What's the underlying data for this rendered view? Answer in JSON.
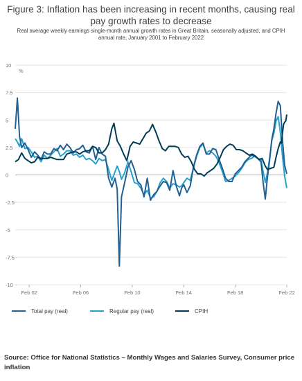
{
  "title": "Figure 3: Inflation has been increasing in recent months, causing real pay growth rates to decrease",
  "subtitle": "Real average weekly earnings single-month annual growth rates in Great Britain, seasonally adjusted, and CPIH annual rate, January 2001 to February 2022",
  "source": "Source: Office for National Statistics – Monthly Wages and Salaries Survey, Consumer price inflation",
  "colors": {
    "total": "#206095",
    "regular": "#27a0cc",
    "cpih": "#003c57",
    "grid": "#e6e6e6",
    "zero": "#b3b3b3"
  },
  "chart_data": {
    "type": "line",
    "title": "Figure 3: Inflation has been increasing in recent months, causing real pay growth rates to decrease",
    "ylabel": "%",
    "ylim": [
      -10,
      10
    ],
    "yticks": [
      10,
      7.5,
      5,
      2.5,
      0,
      -2.5,
      -5,
      -7.5,
      -10
    ],
    "ytick_labels": [
      "10",
      "7.5",
      "5",
      "2.5",
      "0",
      "-2.5",
      "-5",
      "-7.5",
      "-10"
    ],
    "xlim": [
      "2001-01",
      "2022-02"
    ],
    "xticks": [
      "2002-02",
      "2006-02",
      "2010-02",
      "2014-02",
      "2018-02",
      "2022-02"
    ],
    "xtick_labels": [
      "Feb 02",
      "Feb 06",
      "Feb 10",
      "Feb 14",
      "Feb 18",
      "Feb 22"
    ],
    "grid": "horizontal",
    "legend": "bottom",
    "series": [
      {
        "name": "Total pay (real)",
        "color": "#206095",
        "points": [
          [
            "2001-01",
            4.2
          ],
          [
            "2001-03",
            7.0
          ],
          [
            "2001-05",
            3.5
          ],
          [
            "2001-07",
            2.5
          ],
          [
            "2001-10",
            2.9
          ],
          [
            "2002-01",
            2.3
          ],
          [
            "2002-04",
            1.6
          ],
          [
            "2002-07",
            2.1
          ],
          [
            "2002-10",
            1.8
          ],
          [
            "2003-01",
            1.4
          ],
          [
            "2003-04",
            2.1
          ],
          [
            "2003-07",
            1.9
          ],
          [
            "2003-10",
            1.9
          ],
          [
            "2004-01",
            2.4
          ],
          [
            "2004-04",
            2.2
          ],
          [
            "2004-07",
            2.7
          ],
          [
            "2004-10",
            2.3
          ],
          [
            "2005-01",
            2.8
          ],
          [
            "2005-04",
            2.5
          ],
          [
            "2005-07",
            2.0
          ],
          [
            "2005-10",
            2.3
          ],
          [
            "2006-01",
            2.4
          ],
          [
            "2006-04",
            2.7
          ],
          [
            "2006-07",
            2.1
          ],
          [
            "2006-10",
            2.0
          ],
          [
            "2007-01",
            2.6
          ],
          [
            "2007-04",
            1.4
          ],
          [
            "2007-07",
            2.5
          ],
          [
            "2007-10",
            1.9
          ],
          [
            "2008-01",
            1.7
          ],
          [
            "2008-04",
            -0.3
          ],
          [
            "2008-07",
            -1.1
          ],
          [
            "2008-10",
            -0.3
          ],
          [
            "2008-12",
            -1.3
          ],
          [
            "2009-02",
            -8.3
          ],
          [
            "2009-04",
            -2.0
          ],
          [
            "2009-07",
            -0.7
          ],
          [
            "2009-10",
            0.7
          ],
          [
            "2010-01",
            1.3
          ],
          [
            "2010-04",
            0.5
          ],
          [
            "2010-07",
            -0.6
          ],
          [
            "2010-10",
            -0.9
          ],
          [
            "2011-01",
            -2.0
          ],
          [
            "2011-04",
            -0.3
          ],
          [
            "2011-07",
            -2.3
          ],
          [
            "2011-10",
            -1.8
          ],
          [
            "2012-01",
            -1.5
          ],
          [
            "2012-04",
            -1.0
          ],
          [
            "2012-07",
            -0.6
          ],
          [
            "2012-10",
            -0.7
          ],
          [
            "2013-01",
            -1.4
          ],
          [
            "2013-04",
            0.4
          ],
          [
            "2013-07",
            -1.0
          ],
          [
            "2013-10",
            -1.9
          ],
          [
            "2013-12",
            -1.2
          ],
          [
            "2014-02",
            -0.9
          ],
          [
            "2014-05",
            -1.6
          ],
          [
            "2014-08",
            -1.0
          ],
          [
            "2014-11",
            0.7
          ],
          [
            "2015-02",
            1.8
          ],
          [
            "2015-05",
            2.6
          ],
          [
            "2015-08",
            2.9
          ],
          [
            "2015-11",
            1.9
          ],
          [
            "2016-02",
            1.9
          ],
          [
            "2016-05",
            2.4
          ],
          [
            "2016-08",
            2.3
          ],
          [
            "2016-11",
            1.4
          ],
          [
            "2017-02",
            0.6
          ],
          [
            "2017-05",
            -0.3
          ],
          [
            "2017-08",
            -0.6
          ],
          [
            "2017-11",
            -0.6
          ],
          [
            "2018-02",
            0.1
          ],
          [
            "2018-05",
            0.4
          ],
          [
            "2018-08",
            0.7
          ],
          [
            "2018-11",
            1.2
          ],
          [
            "2019-02",
            1.5
          ],
          [
            "2019-05",
            1.8
          ],
          [
            "2019-08",
            1.7
          ],
          [
            "2019-11",
            1.5
          ],
          [
            "2020-02",
            1.2
          ],
          [
            "2020-04",
            -0.7
          ],
          [
            "2020-06",
            -2.2
          ],
          [
            "2020-08",
            -0.2
          ],
          [
            "2020-10",
            1.3
          ],
          [
            "2020-12",
            3.2
          ],
          [
            "2021-02",
            4.2
          ],
          [
            "2021-04",
            5.6
          ],
          [
            "2021-06",
            6.7
          ],
          [
            "2021-08",
            6.3
          ],
          [
            "2021-10",
            3.2
          ],
          [
            "2021-12",
            0.9
          ],
          [
            "2022-02",
            0.1
          ]
        ]
      },
      {
        "name": "Regular pay (real)",
        "color": "#27a0cc",
        "points": [
          [
            "2001-01",
            3.3
          ],
          [
            "2001-03",
            3.0
          ],
          [
            "2001-05",
            2.6
          ],
          [
            "2001-07",
            3.3
          ],
          [
            "2001-10",
            2.4
          ],
          [
            "2002-01",
            2.5
          ],
          [
            "2002-04",
            2.1
          ],
          [
            "2002-07",
            1.6
          ],
          [
            "2002-10",
            1.7
          ],
          [
            "2003-01",
            1.2
          ],
          [
            "2003-04",
            1.8
          ],
          [
            "2003-07",
            1.5
          ],
          [
            "2003-10",
            1.8
          ],
          [
            "2004-01",
            2.1
          ],
          [
            "2004-04",
            2.4
          ],
          [
            "2004-07",
            1.7
          ],
          [
            "2004-10",
            1.9
          ],
          [
            "2005-01",
            2.2
          ],
          [
            "2005-04",
            2.2
          ],
          [
            "2005-07",
            1.8
          ],
          [
            "2005-10",
            1.9
          ],
          [
            "2006-01",
            1.6
          ],
          [
            "2006-04",
            1.8
          ],
          [
            "2006-07",
            1.4
          ],
          [
            "2006-10",
            1.5
          ],
          [
            "2007-01",
            1.3
          ],
          [
            "2007-04",
            1.0
          ],
          [
            "2007-07",
            1.5
          ],
          [
            "2007-10",
            1.3
          ],
          [
            "2008-01",
            1.4
          ],
          [
            "2008-04",
            0.5
          ],
          [
            "2008-07",
            -0.5
          ],
          [
            "2008-10",
            0.3
          ],
          [
            "2008-12",
            0.8
          ],
          [
            "2009-02",
            0.3
          ],
          [
            "2009-04",
            -0.4
          ],
          [
            "2009-07",
            0.2
          ],
          [
            "2009-10",
            1.2
          ],
          [
            "2010-01",
            0.3
          ],
          [
            "2010-04",
            -0.7
          ],
          [
            "2010-07",
            -0.8
          ],
          [
            "2010-10",
            -1.2
          ],
          [
            "2011-01",
            -1.8
          ],
          [
            "2011-04",
            -1.4
          ],
          [
            "2011-07",
            -2.1
          ],
          [
            "2011-10",
            -2.0
          ],
          [
            "2012-01",
            -1.5
          ],
          [
            "2012-04",
            -0.7
          ],
          [
            "2012-07",
            -0.3
          ],
          [
            "2012-10",
            -0.6
          ],
          [
            "2013-01",
            -1.2
          ],
          [
            "2013-04",
            -0.8
          ],
          [
            "2013-07",
            -0.9
          ],
          [
            "2013-10",
            -1.1
          ],
          [
            "2013-12",
            -1.0
          ],
          [
            "2014-02",
            -0.7
          ],
          [
            "2014-05",
            -0.3
          ],
          [
            "2014-08",
            -0.5
          ],
          [
            "2014-11",
            0.6
          ],
          [
            "2015-02",
            1.7
          ],
          [
            "2015-05",
            2.5
          ],
          [
            "2015-08",
            2.8
          ],
          [
            "2015-11",
            2.0
          ],
          [
            "2016-02",
            2.2
          ],
          [
            "2016-05",
            2.0
          ],
          [
            "2016-08",
            1.7
          ],
          [
            "2016-11",
            1.1
          ],
          [
            "2017-02",
            0.3
          ],
          [
            "2017-05",
            -0.6
          ],
          [
            "2017-08",
            -0.5
          ],
          [
            "2017-11",
            -0.3
          ],
          [
            "2018-02",
            -0.1
          ],
          [
            "2018-05",
            0.2
          ],
          [
            "2018-08",
            0.6
          ],
          [
            "2018-11",
            1.1
          ],
          [
            "2019-02",
            1.4
          ],
          [
            "2019-05",
            1.5
          ],
          [
            "2019-08",
            1.7
          ],
          [
            "2019-11",
            1.5
          ],
          [
            "2020-02",
            1.4
          ],
          [
            "2020-04",
            0.3
          ],
          [
            "2020-06",
            -0.7
          ],
          [
            "2020-08",
            0.2
          ],
          [
            "2020-10",
            1.5
          ],
          [
            "2020-12",
            3.1
          ],
          [
            "2021-02",
            3.8
          ],
          [
            "2021-04",
            4.9
          ],
          [
            "2021-06",
            5.3
          ],
          [
            "2021-08",
            3.9
          ],
          [
            "2021-10",
            1.7
          ],
          [
            "2021-12",
            -0.1
          ],
          [
            "2022-02",
            -1.2
          ]
        ]
      },
      {
        "name": "CPIH",
        "color": "#003c57",
        "points": [
          [
            "2001-01",
            1.2
          ],
          [
            "2001-04",
            1.4
          ],
          [
            "2001-07",
            2.0
          ],
          [
            "2001-10",
            1.5
          ],
          [
            "2002-01",
            1.3
          ],
          [
            "2002-04",
            1.1
          ],
          [
            "2002-07",
            1.2
          ],
          [
            "2002-10",
            1.6
          ],
          [
            "2003-01",
            1.5
          ],
          [
            "2003-04",
            1.5
          ],
          [
            "2003-07",
            1.5
          ],
          [
            "2003-10",
            1.6
          ],
          [
            "2004-01",
            1.5
          ],
          [
            "2004-04",
            1.4
          ],
          [
            "2004-07",
            1.4
          ],
          [
            "2004-10",
            1.4
          ],
          [
            "2005-01",
            1.9
          ],
          [
            "2005-04",
            2.0
          ],
          [
            "2005-07",
            2.1
          ],
          [
            "2005-10",
            2.1
          ],
          [
            "2006-01",
            1.9
          ],
          [
            "2006-04",
            2.1
          ],
          [
            "2006-07",
            2.2
          ],
          [
            "2006-10",
            2.2
          ],
          [
            "2007-01",
            2.6
          ],
          [
            "2007-04",
            2.5
          ],
          [
            "2007-07",
            2.0
          ],
          [
            "2007-10",
            2.0
          ],
          [
            "2008-01",
            2.3
          ],
          [
            "2008-04",
            2.8
          ],
          [
            "2008-07",
            4.2
          ],
          [
            "2008-09",
            4.7
          ],
          [
            "2008-12",
            3.1
          ],
          [
            "2009-03",
            2.6
          ],
          [
            "2009-06",
            1.9
          ],
          [
            "2009-09",
            1.3
          ],
          [
            "2009-12",
            2.6
          ],
          [
            "2010-03",
            3.0
          ],
          [
            "2010-06",
            2.9
          ],
          [
            "2010-09",
            2.8
          ],
          [
            "2010-12",
            3.3
          ],
          [
            "2011-03",
            3.8
          ],
          [
            "2011-06",
            4.0
          ],
          [
            "2011-09",
            4.6
          ],
          [
            "2011-12",
            3.9
          ],
          [
            "2012-03",
            3.1
          ],
          [
            "2012-06",
            2.4
          ],
          [
            "2012-09",
            2.2
          ],
          [
            "2012-12",
            2.6
          ],
          [
            "2013-03",
            2.6
          ],
          [
            "2013-06",
            2.6
          ],
          [
            "2013-09",
            2.5
          ],
          [
            "2013-12",
            1.9
          ],
          [
            "2014-03",
            1.6
          ],
          [
            "2014-06",
            1.7
          ],
          [
            "2014-09",
            1.2
          ],
          [
            "2014-12",
            0.5
          ],
          [
            "2015-03",
            0.1
          ],
          [
            "2015-06",
            0.1
          ],
          [
            "2015-09",
            -0.1
          ],
          [
            "2015-12",
            0.2
          ],
          [
            "2016-03",
            0.4
          ],
          [
            "2016-06",
            0.6
          ],
          [
            "2016-09",
            1.0
          ],
          [
            "2016-12",
            1.6
          ],
          [
            "2017-03",
            2.3
          ],
          [
            "2017-06",
            2.6
          ],
          [
            "2017-09",
            2.8
          ],
          [
            "2017-12",
            2.7
          ],
          [
            "2018-03",
            2.3
          ],
          [
            "2018-06",
            2.3
          ],
          [
            "2018-09",
            2.2
          ],
          [
            "2018-12",
            2.0
          ],
          [
            "2019-03",
            1.8
          ],
          [
            "2019-06",
            1.9
          ],
          [
            "2019-09",
            1.7
          ],
          [
            "2019-12",
            1.4
          ],
          [
            "2020-03",
            1.5
          ],
          [
            "2020-06",
            0.8
          ],
          [
            "2020-08",
            0.5
          ],
          [
            "2020-11",
            0.6
          ],
          [
            "2021-02",
            0.7
          ],
          [
            "2021-04",
            1.6
          ],
          [
            "2021-06",
            2.4
          ],
          [
            "2021-08",
            3.0
          ],
          [
            "2021-09",
            2.9
          ],
          [
            "2021-10",
            3.8
          ],
          [
            "2021-11",
            4.6
          ],
          [
            "2021-12",
            4.8
          ],
          [
            "2022-01",
            4.9
          ],
          [
            "2022-02",
            5.5
          ]
        ]
      }
    ]
  }
}
